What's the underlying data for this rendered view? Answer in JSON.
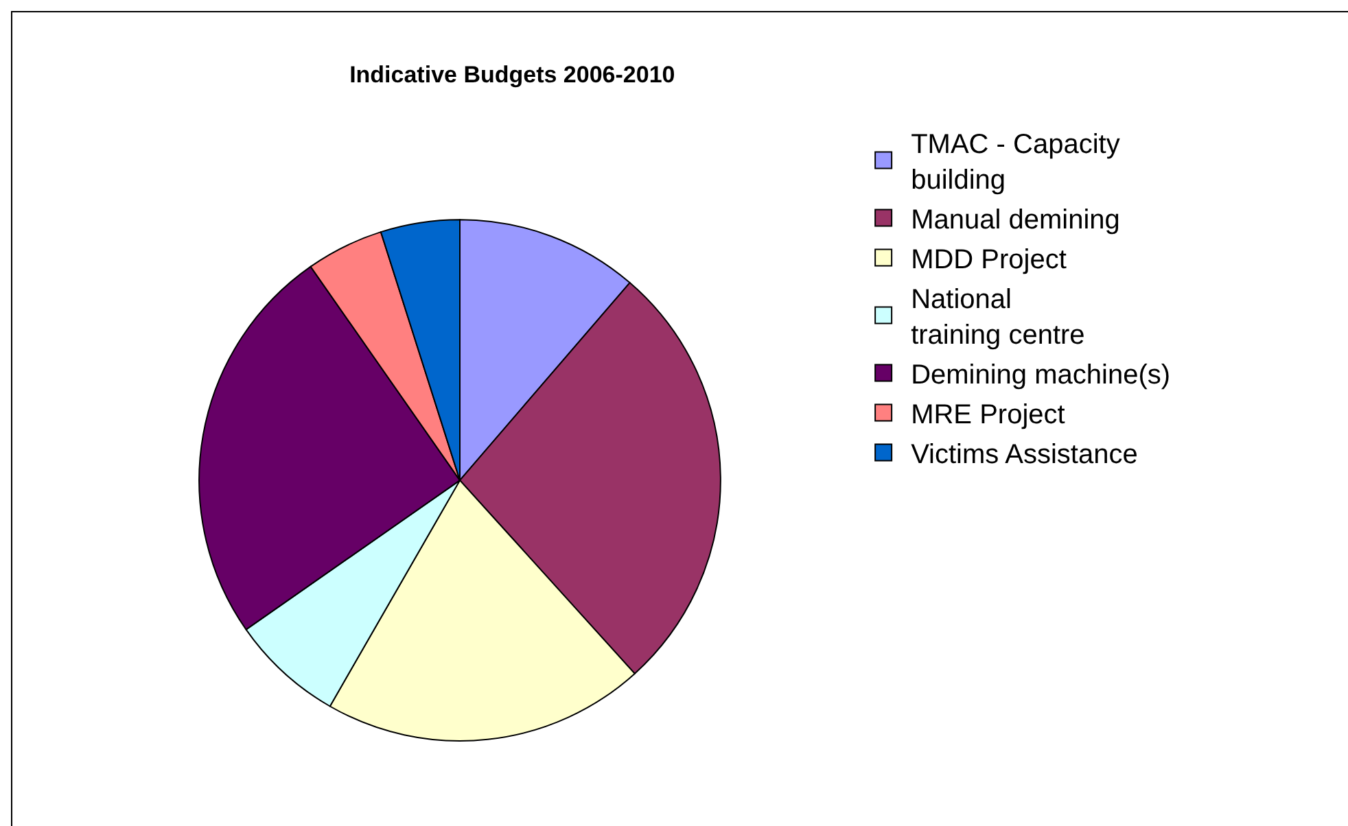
{
  "chart_data": {
    "type": "pie",
    "title": "Indicative Budgets 2006-2010",
    "categories": [
      "TMAC - Capacity building",
      "Manual demining",
      "MDD Project",
      "National training centre",
      "Demining machine(s)",
      "MRE Project",
      "Victims Assistance"
    ],
    "values": [
      11.3,
      27,
      20,
      7,
      25,
      4.8,
      4.9
    ],
    "colors": [
      "#9999ff",
      "#993366",
      "#ffffcc",
      "#ccffff",
      "#660066",
      "#ff8080",
      "#0066cc"
    ],
    "legend": "right"
  }
}
